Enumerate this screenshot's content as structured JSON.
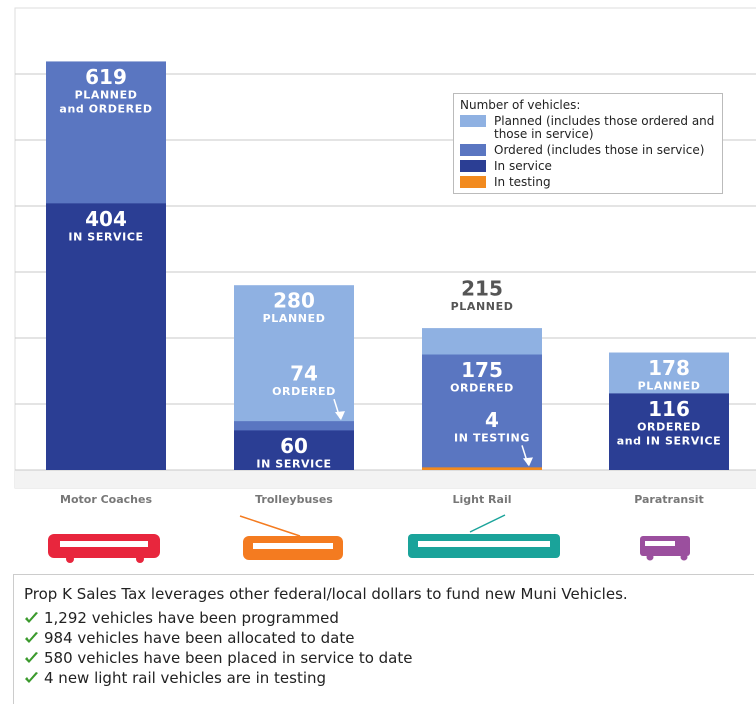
{
  "chart_data": {
    "type": "bar",
    "categories": [
      "Motor Coaches",
      "Trolleybuses",
      "Light Rail",
      "Paratransit"
    ],
    "ylim": [
      0,
      700
    ],
    "yticks": [
      0,
      100,
      200,
      300,
      400,
      500,
      600
    ],
    "grid": true,
    "legend_title": "Number of vehicles:",
    "legend": "top-right",
    "series": [
      {
        "name": "Planned (includes those ordered and those in service)",
        "color": "#8fb1e2",
        "values": [
          619,
          280,
          215,
          178
        ],
        "captions": [
          [
            "PLANNED",
            "and ORDERED"
          ],
          [
            "PLANNED"
          ],
          [
            "PLANNED"
          ],
          [
            "PLANNED"
          ]
        ]
      },
      {
        "name": "Ordered (includes those in service)",
        "color": "#5a76c1",
        "values": [
          619,
          74,
          175,
          116
        ],
        "captions": [
          null,
          [
            "ORDERED"
          ],
          [
            "ORDERED"
          ],
          null
        ]
      },
      {
        "name": "In service",
        "color": "#2b3e94",
        "values": [
          404,
          60,
          null,
          116
        ],
        "captions": [
          [
            "IN SERVICE"
          ],
          [
            "IN SERVICE"
          ],
          null,
          [
            "ORDERED",
            "and IN SERVICE"
          ]
        ]
      },
      {
        "name": "In testing",
        "color": "#f28a1e",
        "values": [
          null,
          null,
          4,
          null
        ],
        "captions": [
          null,
          null,
          [
            "IN TESTING"
          ],
          null
        ]
      }
    ]
  },
  "notes": {
    "title": "Prop K Sales Tax leverages other federal/local dollars to fund new Muni Vehicles.",
    "items": [
      "1,292 vehicles have been programmed",
      "984 vehicles have been allocated to date",
      "580 vehicles have been placed in service to date",
      "4 new light rail vehicles are in testing"
    ]
  }
}
